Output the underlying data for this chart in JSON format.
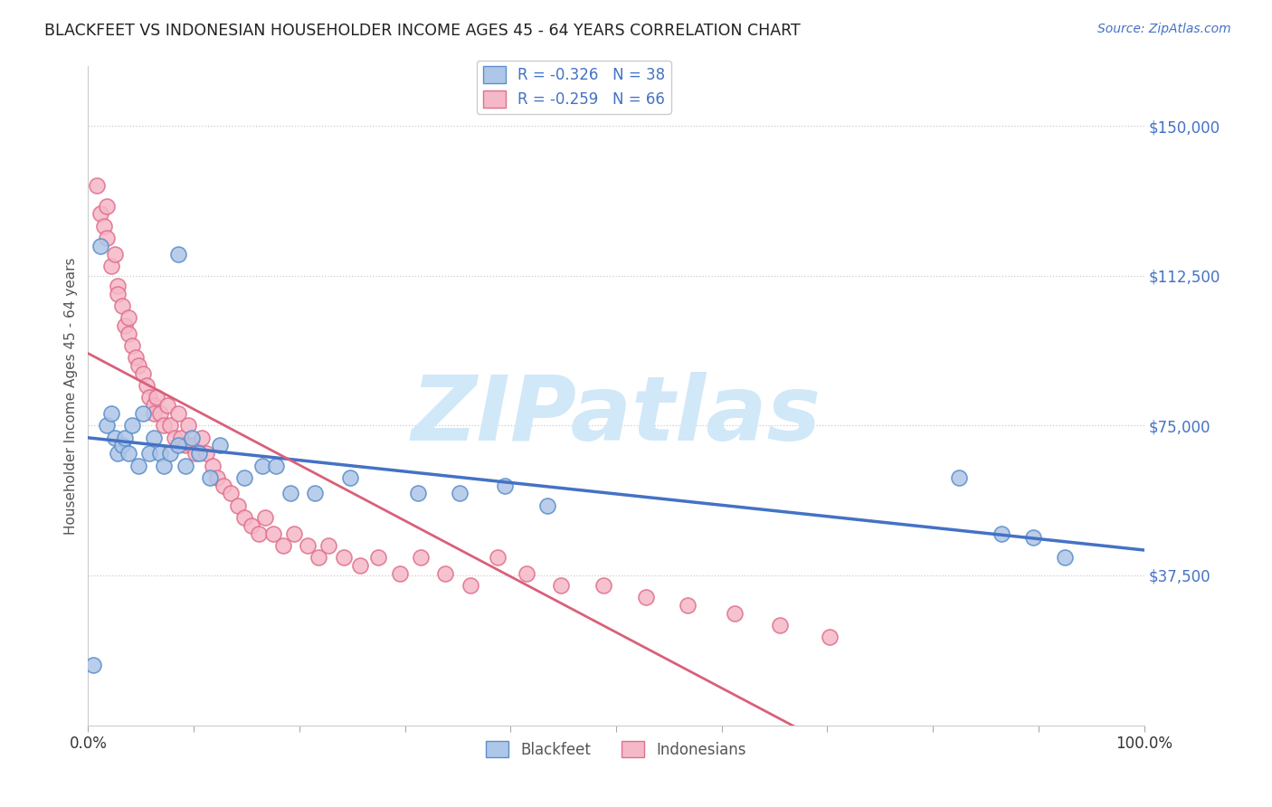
{
  "title": "BLACKFEET VS INDONESIAN HOUSEHOLDER INCOME AGES 45 - 64 YEARS CORRELATION CHART",
  "source": "Source: ZipAtlas.com",
  "ylabel": "Householder Income Ages 45 - 64 years",
  "yticks": [
    37500,
    75000,
    112500,
    150000
  ],
  "ytick_labels": [
    "$37,500",
    "$75,000",
    "$112,500",
    "$150,000"
  ],
  "blackfeet_color": "#aec6e8",
  "indonesian_color": "#f5b8c8",
  "blackfeet_edge": "#5b8fc9",
  "indonesian_edge": "#e0708a",
  "blue_line_color": "#4472C4",
  "pink_line_solid_color": "#d9607a",
  "pink_line_dash_color": "#f0a0b0",
  "watermark_color": "#d0e8f8",
  "blackfeet_x": [
    0.005,
    0.012,
    0.018,
    0.022,
    0.025,
    0.028,
    0.032,
    0.035,
    0.038,
    0.042,
    0.048,
    0.052,
    0.058,
    0.062,
    0.068,
    0.072,
    0.078,
    0.085,
    0.092,
    0.098,
    0.105,
    0.115,
    0.125,
    0.148,
    0.165,
    0.178,
    0.192,
    0.215,
    0.248,
    0.312,
    0.352,
    0.395,
    0.435,
    0.825,
    0.865,
    0.895,
    0.925,
    0.085
  ],
  "blackfeet_y": [
    15000,
    120000,
    75000,
    78000,
    72000,
    68000,
    70000,
    72000,
    68000,
    75000,
    65000,
    78000,
    68000,
    72000,
    68000,
    65000,
    68000,
    70000,
    65000,
    72000,
    68000,
    62000,
    70000,
    62000,
    65000,
    65000,
    58000,
    58000,
    62000,
    58000,
    58000,
    60000,
    55000,
    62000,
    48000,
    47000,
    42000,
    118000
  ],
  "indonesian_x": [
    0.008,
    0.012,
    0.015,
    0.018,
    0.018,
    0.022,
    0.025,
    0.028,
    0.028,
    0.032,
    0.035,
    0.038,
    0.038,
    0.042,
    0.045,
    0.048,
    0.052,
    0.055,
    0.058,
    0.062,
    0.062,
    0.065,
    0.068,
    0.072,
    0.075,
    0.078,
    0.082,
    0.085,
    0.088,
    0.092,
    0.095,
    0.098,
    0.102,
    0.108,
    0.112,
    0.118,
    0.122,
    0.128,
    0.135,
    0.142,
    0.148,
    0.155,
    0.162,
    0.168,
    0.175,
    0.185,
    0.195,
    0.208,
    0.218,
    0.228,
    0.242,
    0.258,
    0.275,
    0.295,
    0.315,
    0.338,
    0.362,
    0.388,
    0.415,
    0.448,
    0.488,
    0.528,
    0.568,
    0.612,
    0.655,
    0.702
  ],
  "indonesian_y": [
    135000,
    128000,
    125000,
    130000,
    122000,
    115000,
    118000,
    110000,
    108000,
    105000,
    100000,
    98000,
    102000,
    95000,
    92000,
    90000,
    88000,
    85000,
    82000,
    80000,
    78000,
    82000,
    78000,
    75000,
    80000,
    75000,
    72000,
    78000,
    72000,
    70000,
    75000,
    70000,
    68000,
    72000,
    68000,
    65000,
    62000,
    60000,
    58000,
    55000,
    52000,
    50000,
    48000,
    52000,
    48000,
    45000,
    48000,
    45000,
    42000,
    45000,
    42000,
    40000,
    42000,
    38000,
    42000,
    38000,
    35000,
    42000,
    38000,
    35000,
    35000,
    32000,
    30000,
    28000,
    25000,
    22000
  ]
}
